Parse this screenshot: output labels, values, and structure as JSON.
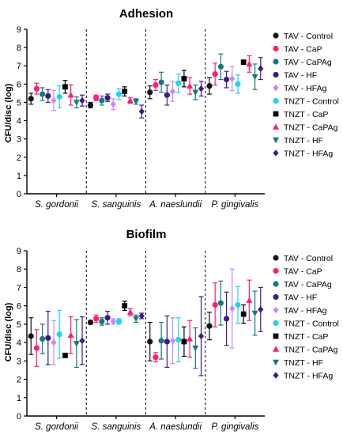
{
  "chart_data": [
    {
      "type": "scatter",
      "title": "Adhesion",
      "xlabel": "",
      "ylabel": "CFU/disc (log)",
      "ylim": [
        0,
        9
      ],
      "yticks": [
        "0",
        "1",
        "2",
        "3",
        "4",
        "5",
        "6",
        "7",
        "8",
        "9"
      ],
      "categories": [
        "S. gordonii",
        "S. sanguinis",
        "A. naeslundii",
        "P. gingivalis"
      ],
      "grid": false,
      "legend_position": "right",
      "series": [
        {
          "name": "TAV - Control",
          "color": "#111111",
          "marker": "circle",
          "values": [
            5.2,
            4.85,
            5.55,
            5.9
          ],
          "errors": [
            0.3,
            0.15,
            0.35,
            0.45
          ]
        },
        {
          "name": "TAV - CaP",
          "color": "#ff1c74",
          "marker": "circle",
          "values": [
            5.75,
            5.25,
            5.95,
            6.55
          ],
          "errors": [
            0.3,
            0.15,
            0.3,
            0.6
          ]
        },
        {
          "name": "TAV - CaPAg",
          "color": "#157a7a",
          "marker": "circle",
          "values": [
            5.45,
            5.1,
            6.1,
            6.95
          ],
          "errors": [
            0.35,
            0.25,
            0.55,
            0.7
          ]
        },
        {
          "name": "TAV - HF",
          "color": "#3d1a8c",
          "marker": "circle",
          "values": [
            5.35,
            5.25,
            5.4,
            6.25
          ],
          "errors": [
            0.35,
            0.2,
            0.55,
            0.45
          ]
        },
        {
          "name": "TAV - HFAg",
          "color": "#c38cf5",
          "marker": "diamond",
          "values": [
            5.1,
            4.9,
            5.6,
            6.3
          ],
          "errors": [
            0.55,
            0.3,
            0.55,
            0.65
          ]
        },
        {
          "name": "TNZT - Control",
          "color": "#22d3ee",
          "marker": "circle",
          "values": [
            5.3,
            5.45,
            6.05,
            6.0
          ],
          "errors": [
            0.6,
            0.3,
            0.5,
            0.5
          ]
        },
        {
          "name": "TNZT - CaP",
          "color": "#000000",
          "marker": "square",
          "values": [
            5.85,
            5.6,
            6.3,
            7.2
          ],
          "errors": [
            0.35,
            0.25,
            0.45,
            0.1
          ]
        },
        {
          "name": "TNZT - CaPAg",
          "color": "#ff1c74",
          "marker": "triangle-up",
          "values": [
            5.4,
            5.1,
            5.9,
            7.1
          ],
          "errors": [
            0.55,
            0.15,
            0.45,
            0.45
          ]
        },
        {
          "name": "TNZT - HF",
          "color": "#157a7a",
          "marker": "triangle-down",
          "values": [
            5.0,
            5.05,
            5.55,
            6.4
          ],
          "errors": [
            0.3,
            0.15,
            0.4,
            0.7
          ]
        },
        {
          "name": "TNZT - HFAg",
          "color": "#3d1a8c",
          "marker": "diamond",
          "values": [
            5.1,
            4.5,
            5.75,
            6.85
          ],
          "errors": [
            0.3,
            0.35,
            0.4,
            0.6
          ]
        }
      ]
    },
    {
      "type": "scatter",
      "title": "Biofilm",
      "xlabel": "",
      "ylabel": "CFU/disc (log)",
      "ylim": [
        0,
        9
      ],
      "yticks": [
        "0",
        "1",
        "2",
        "3",
        "4",
        "5",
        "6",
        "7",
        "8",
        "9"
      ],
      "categories": [
        "S. gordonii",
        "S. sanguinis",
        "A. naeslundii",
        "P. gingivalis"
      ],
      "grid": false,
      "legend_position": "right",
      "series": [
        {
          "name": "TAV - Control",
          "color": "#111111",
          "marker": "circle",
          "values": [
            4.35,
            5.1,
            4.05,
            4.9
          ],
          "errors": [
            1.0,
            0.1,
            1.05,
            0.75
          ]
        },
        {
          "name": "TAV - CaP",
          "color": "#ff1c74",
          "marker": "circle",
          "values": [
            3.7,
            5.3,
            3.2,
            6.05
          ],
          "errors": [
            1.0,
            0.2,
            0.25,
            1.2
          ]
        },
        {
          "name": "TAV - CaPAg",
          "color": "#157a7a",
          "marker": "circle",
          "values": [
            4.2,
            5.15,
            4.1,
            6.15
          ],
          "errors": [
            0.8,
            0.2,
            1.0,
            1.2
          ]
        },
        {
          "name": "TAV - HF",
          "color": "#3d1a8c",
          "marker": "circle",
          "values": [
            4.25,
            5.35,
            4.05,
            5.3
          ],
          "errors": [
            1.45,
            0.35,
            1.4,
            1.45
          ]
        },
        {
          "name": "TAV - HFAg",
          "color": "#c38cf5",
          "marker": "diamond",
          "values": [
            4.0,
            5.15,
            4.1,
            5.85
          ],
          "errors": [
            1.2,
            0.15,
            1.25,
            2.15
          ]
        },
        {
          "name": "TNZT - Control",
          "color": "#22d3ee",
          "marker": "circle",
          "values": [
            4.45,
            5.15,
            4.15,
            6.05
          ],
          "errors": [
            1.3,
            0.15,
            1.2,
            1.0
          ]
        },
        {
          "name": "TNZT - CaP",
          "color": "#000000",
          "marker": "square",
          "values": [
            3.3,
            6.0,
            4.05,
            5.55
          ],
          "errors": [
            0.1,
            0.25,
            0.8,
            0.5
          ]
        },
        {
          "name": "TNZT - CaPAg",
          "color": "#ff1c74",
          "marker": "triangle-up",
          "values": [
            4.4,
            5.65,
            4.2,
            6.3
          ],
          "errors": [
            1.0,
            0.2,
            1.0,
            1.1
          ]
        },
        {
          "name": "TNZT - HF",
          "color": "#157a7a",
          "marker": "triangle-down",
          "values": [
            3.95,
            5.3,
            3.7,
            5.6
          ],
          "errors": [
            1.3,
            0.2,
            1.1,
            1.2
          ]
        },
        {
          "name": "TNZT - HFAg",
          "color": "#3d1a8c",
          "marker": "diamond",
          "values": [
            4.1,
            5.45,
            4.35,
            5.8
          ],
          "errors": [
            1.3,
            0.15,
            2.15,
            1.2
          ]
        }
      ]
    }
  ]
}
